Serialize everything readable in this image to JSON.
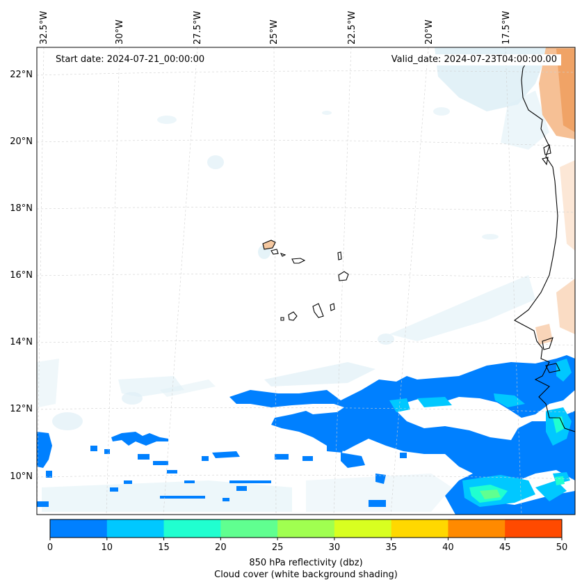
{
  "header": {
    "start_date": "Start date: 2024-07-21_00:00:00",
    "valid_date": "Valid_date: 2024-07-23T04:00:00.00"
  },
  "lon_labels": [
    "32.5°W",
    "30°W",
    "27.5°W",
    "25°W",
    "22.5°W",
    "20°W",
    "17.5°W"
  ],
  "lat_labels": [
    "22°N",
    "20°N",
    "18°N",
    "16°N",
    "14°N",
    "12°N",
    "10°N"
  ],
  "colorbar": {
    "ticks": [
      "0",
      "10",
      "15",
      "20",
      "25",
      "30",
      "35",
      "40",
      "45",
      "50"
    ],
    "colors": [
      "#0080ff",
      "#00c8ff",
      "#20ffd0",
      "#60ff90",
      "#a0ff50",
      "#d8ff20",
      "#ffd800",
      "#ff8a00",
      "#ff4a00"
    ],
    "label_main": "850 hPa reflectivity (dbz)",
    "label_sub": "Cloud cover (white background shading)"
  },
  "colors": {
    "cloud": "#daeef5",
    "land_warm": "#f5b98a",
    "coast": "#000000",
    "grid": "#cccccc"
  }
}
